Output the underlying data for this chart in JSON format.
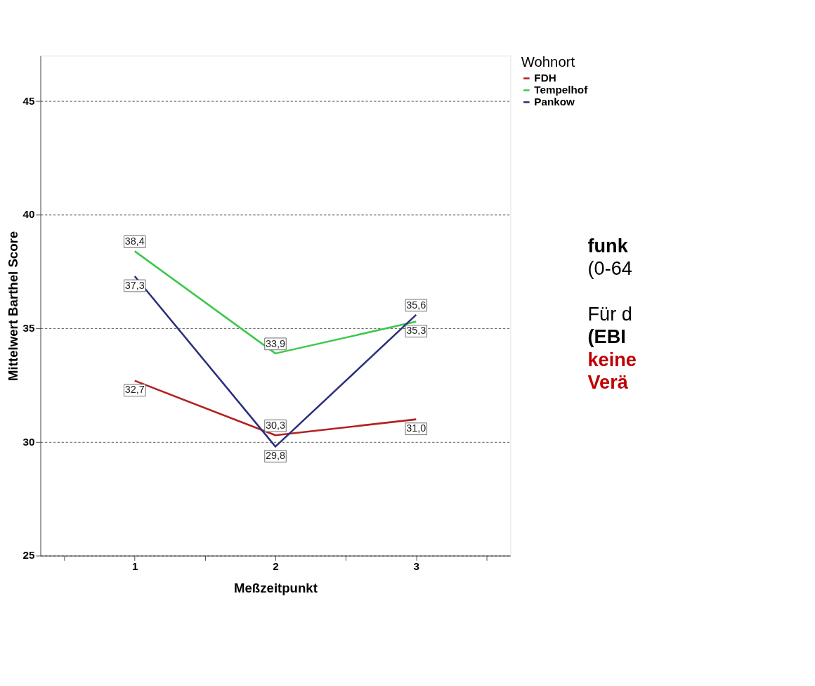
{
  "chart_data": {
    "type": "line",
    "xlabel": "Meßzeitpunkt",
    "ylabel": "Mittelwert Barthel Score",
    "legend_title": "Wohnort",
    "x": [
      1,
      2,
      3
    ],
    "series": [
      {
        "name": "FDH",
        "color": "#b22222",
        "values": [
          32.7,
          30.3,
          31.0
        ],
        "value_labels": [
          "32,7",
          "30,3",
          "31,0"
        ]
      },
      {
        "name": "Tempelhof",
        "color": "#3cc84b",
        "values": [
          38.4,
          33.9,
          35.3
        ],
        "value_labels": [
          "38,4",
          "33,9",
          "35,3"
        ]
      },
      {
        "name": "Pankow",
        "color": "#2b2f7f",
        "values": [
          37.3,
          29.8,
          35.6
        ],
        "value_labels": [
          "37,3",
          "29,8",
          "35,6"
        ]
      }
    ],
    "xlim": [
      0.33,
      3.67
    ],
    "xticks": [
      {
        "value": 0.5,
        "label": null
      },
      1,
      {
        "value": 1.5,
        "label": null
      },
      2,
      {
        "value": 2.5,
        "label": null
      },
      3,
      {
        "value": 3.5,
        "label": null
      }
    ],
    "ylim": [
      25,
      47
    ],
    "yticks": [
      25,
      30,
      35,
      40,
      45
    ],
    "grid": "y",
    "legend": "top right",
    "marker": "none",
    "line_style": "solid",
    "annotations": [
      "funk",
      "(0-64",
      "Für d",
      "(EBI",
      "keine",
      "Verä"
    ]
  }
}
